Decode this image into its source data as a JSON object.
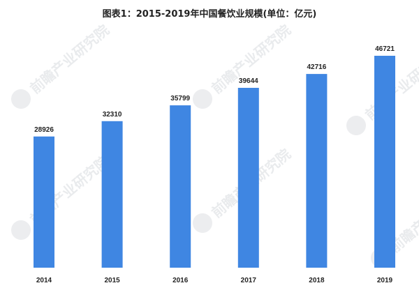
{
  "chart_data": {
    "type": "bar",
    "title": "图表1：2015-2019年中国餐饮业规模(单位：亿元)",
    "categories": [
      "2014",
      "2015",
      "2016",
      "2017",
      "2018",
      "2019"
    ],
    "values": [
      28926,
      32310,
      35799,
      39644,
      42716,
      46721
    ],
    "xlabel": "",
    "ylabel": "",
    "ylim": [
      0,
      50000
    ],
    "grid": false,
    "legend": "none",
    "bar_color": "#3f86e2",
    "show_value_labels": true
  },
  "watermark": {
    "text": "前瞻产业研究院",
    "color": "#cfd3d8"
  }
}
